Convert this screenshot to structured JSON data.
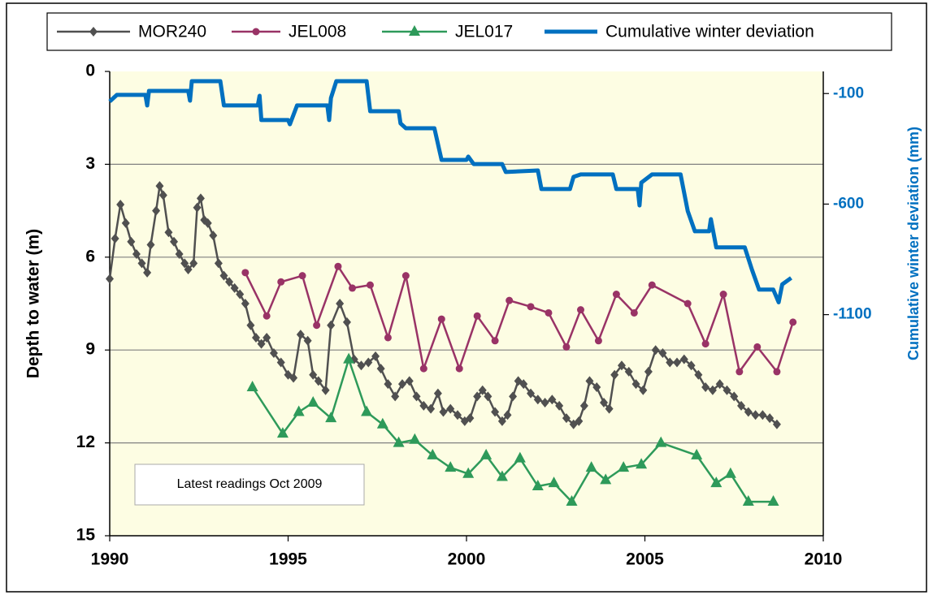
{
  "chart_data": {
    "type": "line",
    "y_label": "Depth to water  (m)",
    "y2_label": "Cumulative winter deviation  (mm)",
    "annotation": "Latest readings  Oct 2009",
    "xlim": [
      1990,
      2010
    ],
    "xticks": [
      1990,
      1995,
      2000,
      2005,
      2010
    ],
    "ylim": [
      0,
      15
    ],
    "yticks": [
      0,
      3,
      6,
      9,
      12,
      15
    ],
    "y_inverted": true,
    "y2lim": [
      -2100,
      0
    ],
    "y2ticks": [
      -100,
      -600,
      -1100
    ],
    "grid": true,
    "legend": "top",
    "series": [
      {
        "name": "MOR240",
        "color": "#505050",
        "marker": "diamond",
        "x": [
          1990.0,
          1990.15,
          1990.3,
          1990.45,
          1990.6,
          1990.75,
          1990.9,
          1991.05,
          1991.15,
          1991.3,
          1991.4,
          1991.5,
          1991.65,
          1991.8,
          1991.95,
          1992.1,
          1992.2,
          1992.35,
          1992.45,
          1992.55,
          1992.65,
          1992.75,
          1992.9,
          1993.05,
          1993.2,
          1993.35,
          1993.5,
          1993.65,
          1993.8,
          1993.95,
          1994.1,
          1994.25,
          1994.4,
          1994.6,
          1994.8,
          1995.0,
          1995.15,
          1995.35,
          1995.55,
          1995.7,
          1995.85,
          1996.05,
          1996.2,
          1996.45,
          1996.65,
          1996.85,
          1997.05,
          1997.25,
          1997.45,
          1997.6,
          1997.8,
          1998.0,
          1998.2,
          1998.4,
          1998.6,
          1998.8,
          1999.0,
          1999.2,
          1999.35,
          1999.55,
          1999.75,
          1999.95,
          2000.1,
          2000.3,
          2000.45,
          2000.6,
          2000.8,
          2001.0,
          2001.15,
          2001.3,
          2001.45,
          2001.6,
          2001.8,
          2002.0,
          2002.2,
          2002.4,
          2002.6,
          2002.8,
          2003.0,
          2003.15,
          2003.3,
          2003.45,
          2003.65,
          2003.85,
          2004.0,
          2004.15,
          2004.35,
          2004.55,
          2004.75,
          2004.95,
          2005.1,
          2005.3,
          2005.5,
          2005.7,
          2005.9,
          2006.1,
          2006.3,
          2006.5,
          2006.7,
          2006.9,
          2007.1,
          2007.3,
          2007.5,
          2007.7,
          2007.9,
          2008.1,
          2008.3,
          2008.5,
          2008.7
        ],
        "values": [
          6.7,
          5.4,
          4.3,
          4.9,
          5.5,
          5.9,
          6.2,
          6.5,
          5.6,
          4.5,
          3.7,
          4.0,
          5.2,
          5.5,
          5.9,
          6.2,
          6.4,
          6.2,
          4.4,
          4.1,
          4.8,
          4.9,
          5.3,
          6.2,
          6.6,
          6.8,
          7.0,
          7.2,
          7.5,
          8.2,
          8.6,
          8.8,
          8.6,
          9.1,
          9.4,
          9.8,
          9.9,
          8.5,
          8.7,
          9.8,
          10.0,
          10.3,
          8.2,
          7.5,
          8.1,
          9.3,
          9.5,
          9.4,
          9.2,
          9.6,
          10.1,
          10.5,
          10.1,
          10.0,
          10.5,
          10.8,
          10.9,
          10.4,
          11.0,
          10.9,
          11.1,
          11.3,
          11.2,
          10.5,
          10.3,
          10.5,
          11.0,
          11.3,
          11.1,
          10.5,
          10.0,
          10.1,
          10.4,
          10.6,
          10.7,
          10.6,
          10.8,
          11.2,
          11.4,
          11.3,
          10.8,
          10.0,
          10.2,
          10.7,
          10.9,
          9.8,
          9.5,
          9.7,
          10.1,
          10.3,
          9.7,
          9.0,
          9.1,
          9.4,
          9.4,
          9.3,
          9.5,
          9.8,
          10.2,
          10.3,
          10.1,
          10.3,
          10.5,
          10.8,
          11.0,
          11.1,
          11.1,
          11.2,
          11.4
        ]
      },
      {
        "name": "JEL008",
        "color": "#993366",
        "marker": "circle",
        "x": [
          1993.8,
          1994.4,
          1994.8,
          1995.4,
          1995.8,
          1996.4,
          1996.8,
          1997.3,
          1997.8,
          1998.3,
          1998.8,
          1999.3,
          1999.8,
          2000.3,
          2000.8,
          2001.2,
          2001.8,
          2002.3,
          2002.8,
          2003.2,
          2003.7,
          2004.2,
          2004.7,
          2005.2,
          2006.2,
          2006.7,
          2007.2,
          2007.65,
          2008.15,
          2008.7,
          2009.15
        ],
        "values": [
          6.5,
          7.9,
          6.8,
          6.6,
          8.2,
          6.3,
          7.0,
          6.9,
          8.6,
          6.6,
          9.6,
          8.0,
          9.6,
          7.9,
          8.7,
          7.4,
          7.6,
          7.8,
          8.9,
          7.7,
          8.7,
          7.2,
          7.8,
          6.9,
          7.5,
          8.8,
          7.2,
          9.7,
          8.9,
          9.7,
          8.1
        ]
      },
      {
        "name": "JEL017",
        "color": "#2e9a5a",
        "marker": "triangle",
        "x": [
          1994.0,
          1994.85,
          1995.3,
          1995.7,
          1996.2,
          1996.7,
          1997.2,
          1997.65,
          1998.1,
          1998.55,
          1999.05,
          1999.55,
          2000.05,
          2000.55,
          2001.0,
          2001.5,
          2002.0,
          2002.45,
          2002.95,
          2003.5,
          2003.9,
          2004.4,
          2004.9,
          2005.45,
          2006.45,
          2007.0,
          2007.4,
          2007.9,
          2008.6
        ],
        "values": [
          10.2,
          11.7,
          11.0,
          10.7,
          11.2,
          9.3,
          11.0,
          11.4,
          12.0,
          11.9,
          12.4,
          12.8,
          13.0,
          12.4,
          13.1,
          12.5,
          13.4,
          13.3,
          13.9,
          12.8,
          13.2,
          12.8,
          12.7,
          12.0,
          12.4,
          13.3,
          13.0,
          13.9,
          13.9
        ]
      },
      {
        "name": "Cumulative winter deviation",
        "color": "#0070c0",
        "marker": "none",
        "axis": "y2",
        "x": [
          1990.0,
          1990.2,
          1991.0,
          1991.05,
          1991.1,
          1992.2,
          1992.25,
          1992.3,
          1993.1,
          1993.2,
          1994.15,
          1994.2,
          1994.25,
          1995.0,
          1995.05,
          1995.25,
          1996.1,
          1996.15,
          1996.2,
          1996.35,
          1997.2,
          1997.3,
          1998.1,
          1998.15,
          1998.3,
          1999.1,
          1999.3,
          2000.0,
          2000.05,
          2000.2,
          2001.0,
          2001.1,
          2002.0,
          2002.1,
          2002.9,
          2003.0,
          2003.2,
          2004.1,
          2004.2,
          2004.8,
          2004.85,
          2004.9,
          2005.2,
          2006.0,
          2006.2,
          2006.4,
          2006.8,
          2006.85,
          2007.0,
          2007.8,
          2008.0,
          2008.2,
          2008.6,
          2008.75,
          2008.85,
          2009.1
        ],
        "values": [
          -136,
          -106,
          -106,
          -154,
          -88,
          -88,
          -132,
          -44,
          -44,
          -154,
          -154,
          -110,
          -220,
          -220,
          -239,
          -154,
          -154,
          -220,
          -120,
          -44,
          -44,
          -180,
          -180,
          -235,
          -257,
          -257,
          -400,
          -400,
          -385,
          -419,
          -419,
          -455,
          -448,
          -532,
          -532,
          -477,
          -466,
          -466,
          -532,
          -532,
          -606,
          -503,
          -466,
          -466,
          -631,
          -723,
          -723,
          -668,
          -796,
          -796,
          -896,
          -987,
          -987,
          -1044,
          -963,
          -934
        ]
      }
    ]
  }
}
